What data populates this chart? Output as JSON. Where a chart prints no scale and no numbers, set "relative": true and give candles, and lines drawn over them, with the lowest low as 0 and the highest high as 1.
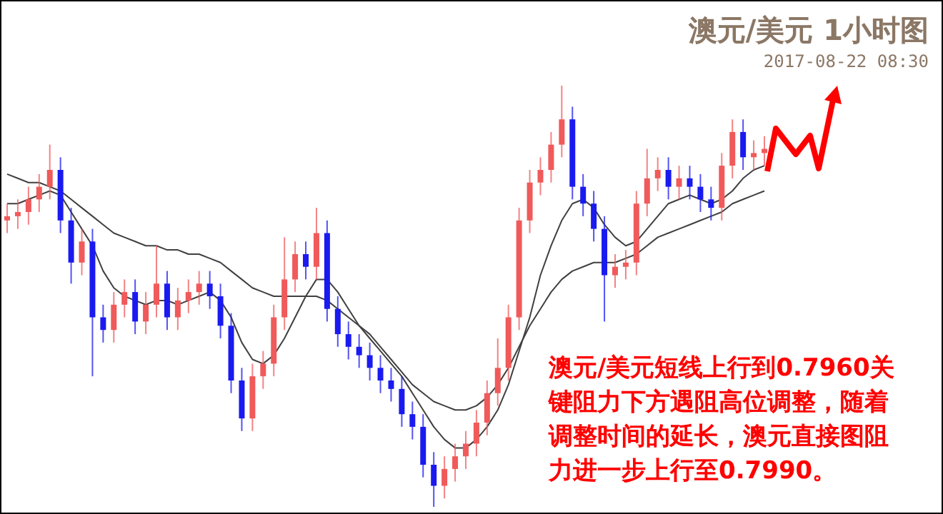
{
  "chart_data": {
    "type": "candlestick",
    "relative": true,
    "title": "澳元/美元 1小时图",
    "subtitle": "2017-08-22 08:30",
    "annotations": [
      "澳元/美元短线上行到0.7960关键阻力下方遇阻高位调整，随着调整时间的延长，澳元直接图阻力进一步上行至0.7990。"
    ],
    "categories": [
      null,
      null,
      null,
      null,
      null,
      null,
      null,
      null,
      null,
      null,
      null,
      null,
      null,
      null,
      null,
      null,
      null,
      null,
      null,
      null,
      null,
      null,
      null,
      null,
      null,
      null,
      null,
      null,
      null,
      null,
      null,
      null,
      null,
      null,
      null,
      null,
      null,
      null,
      null,
      null,
      null,
      null,
      null,
      null,
      null,
      null,
      null,
      null,
      null,
      null,
      null,
      null,
      null,
      null,
      null,
      null,
      null,
      null,
      null,
      null,
      null,
      null,
      null,
      null,
      null,
      null,
      null,
      null,
      null,
      null,
      null,
      null
    ],
    "ohlc": [
      [
        0.68,
        0.72,
        0.65,
        0.69
      ],
      [
        0.69,
        0.73,
        0.66,
        0.7
      ],
      [
        0.7,
        0.76,
        0.67,
        0.73
      ],
      [
        0.73,
        0.79,
        0.7,
        0.76
      ],
      [
        0.76,
        0.86,
        0.73,
        0.8
      ],
      [
        0.8,
        0.83,
        0.65,
        0.68
      ],
      [
        0.68,
        0.71,
        0.53,
        0.58
      ],
      [
        0.58,
        0.66,
        0.55,
        0.63
      ],
      [
        0.63,
        0.66,
        0.31,
        0.45
      ],
      [
        0.45,
        0.48,
        0.39,
        0.42
      ],
      [
        0.42,
        0.51,
        0.39,
        0.48
      ],
      [
        0.48,
        0.54,
        0.45,
        0.51
      ],
      [
        0.51,
        0.54,
        0.41,
        0.44
      ],
      [
        0.44,
        0.51,
        0.41,
        0.48
      ],
      [
        0.48,
        0.62,
        0.45,
        0.53
      ],
      [
        0.53,
        0.56,
        0.42,
        0.45
      ],
      [
        0.45,
        0.52,
        0.42,
        0.49
      ],
      [
        0.49,
        0.54,
        0.46,
        0.51
      ],
      [
        0.51,
        0.56,
        0.48,
        0.53
      ],
      [
        0.53,
        0.56,
        0.47,
        0.5
      ],
      [
        0.5,
        0.53,
        0.4,
        0.43
      ],
      [
        0.43,
        0.46,
        0.27,
        0.3
      ],
      [
        0.3,
        0.33,
        0.18,
        0.21
      ],
      [
        0.21,
        0.34,
        0.18,
        0.31
      ],
      [
        0.31,
        0.37,
        0.28,
        0.34
      ],
      [
        0.34,
        0.48,
        0.31,
        0.45
      ],
      [
        0.45,
        0.64,
        0.42,
        0.54
      ],
      [
        0.54,
        0.63,
        0.51,
        0.6
      ],
      [
        0.6,
        0.63,
        0.54,
        0.57
      ],
      [
        0.57,
        0.71,
        0.54,
        0.65
      ],
      [
        0.65,
        0.68,
        0.44,
        0.47
      ],
      [
        0.47,
        0.5,
        0.38,
        0.41
      ],
      [
        0.41,
        0.44,
        0.35,
        0.38
      ],
      [
        0.38,
        0.41,
        0.33,
        0.36
      ],
      [
        0.36,
        0.39,
        0.3,
        0.33
      ],
      [
        0.33,
        0.36,
        0.27,
        0.3
      ],
      [
        0.3,
        0.33,
        0.25,
        0.28
      ],
      [
        0.28,
        0.31,
        0.19,
        0.22
      ],
      [
        0.22,
        0.25,
        0.16,
        0.19
      ],
      [
        0.19,
        0.22,
        0.07,
        0.1
      ],
      [
        0.1,
        0.13,
        0.0,
        0.05
      ],
      [
        0.05,
        0.12,
        0.02,
        0.09
      ],
      [
        0.09,
        0.15,
        0.06,
        0.12
      ],
      [
        0.12,
        0.18,
        0.09,
        0.15
      ],
      [
        0.15,
        0.23,
        0.12,
        0.2
      ],
      [
        0.2,
        0.3,
        0.17,
        0.27
      ],
      [
        0.27,
        0.4,
        0.24,
        0.33
      ],
      [
        0.33,
        0.48,
        0.3,
        0.45
      ],
      [
        0.45,
        0.71,
        0.42,
        0.68
      ],
      [
        0.68,
        0.8,
        0.65,
        0.77
      ],
      [
        0.77,
        0.83,
        0.74,
        0.8
      ],
      [
        0.8,
        0.89,
        0.77,
        0.86
      ],
      [
        0.86,
        1.0,
        0.83,
        0.92
      ],
      [
        0.92,
        0.95,
        0.73,
        0.76
      ],
      [
        0.76,
        0.79,
        0.69,
        0.72
      ],
      [
        0.72,
        0.75,
        0.63,
        0.66
      ],
      [
        0.66,
        0.69,
        0.44,
        0.55
      ],
      [
        0.55,
        0.6,
        0.52,
        0.57
      ],
      [
        0.57,
        0.61,
        0.54,
        0.58
      ],
      [
        0.58,
        0.75,
        0.55,
        0.72
      ],
      [
        0.72,
        0.85,
        0.69,
        0.78
      ],
      [
        0.78,
        0.83,
        0.75,
        0.8
      ],
      [
        0.8,
        0.83,
        0.73,
        0.76
      ],
      [
        0.76,
        0.81,
        0.73,
        0.78
      ],
      [
        0.78,
        0.81,
        0.73,
        0.76
      ],
      [
        0.76,
        0.79,
        0.7,
        0.73
      ],
      [
        0.73,
        0.76,
        0.68,
        0.71
      ],
      [
        0.71,
        0.84,
        0.68,
        0.81
      ],
      [
        0.81,
        0.92,
        0.78,
        0.89
      ],
      [
        0.89,
        0.92,
        0.8,
        0.83
      ],
      [
        0.83,
        0.87,
        0.8,
        0.84
      ],
      [
        0.84,
        0.88,
        0.81,
        0.85
      ]
    ],
    "colors": [
      "#f05a5a",
      "#f05a5a",
      "#f05a5a",
      "#f05a5a",
      "#f05a5a",
      "#1a1af0",
      "#1a1af0",
      "#f05a5a",
      "#1a1af0",
      "#1a1af0",
      "#f05a5a",
      "#f05a5a",
      "#1a1af0",
      "#f05a5a",
      "#f05a5a",
      "#1a1af0",
      "#f05a5a",
      "#f05a5a",
      "#f05a5a",
      "#1a1af0",
      "#1a1af0",
      "#1a1af0",
      "#1a1af0",
      "#f05a5a",
      "#f05a5a",
      "#f05a5a",
      "#f05a5a",
      "#f05a5a",
      "#1a1af0",
      "#f05a5a",
      "#1a1af0",
      "#1a1af0",
      "#1a1af0",
      "#1a1af0",
      "#1a1af0",
      "#1a1af0",
      "#1a1af0",
      "#1a1af0",
      "#1a1af0",
      "#1a1af0",
      "#1a1af0",
      "#f05a5a",
      "#f05a5a",
      "#f05a5a",
      "#f05a5a",
      "#f05a5a",
      "#f05a5a",
      "#f05a5a",
      "#f05a5a",
      "#f05a5a",
      "#f05a5a",
      "#f05a5a",
      "#f05a5a",
      "#1a1af0",
      "#1a1af0",
      "#1a1af0",
      "#1a1af0",
      "#f05a5a",
      "#f05a5a",
      "#f05a5a",
      "#f05a5a",
      "#f05a5a",
      "#1a1af0",
      "#f05a5a",
      "#1a1af0",
      "#1a1af0",
      "#1a1af0",
      "#f05a5a",
      "#f05a5a",
      "#1a1af0",
      "#f05a5a",
      "#f05a5a"
    ],
    "series": [
      {
        "type": "line",
        "color": "#404040",
        "values": [
          0.72,
          0.72,
          0.73,
          0.74,
          0.75,
          0.74,
          0.7,
          0.66,
          0.62,
          0.56,
          0.52,
          0.5,
          0.49,
          0.48,
          0.49,
          0.49,
          0.48,
          0.49,
          0.5,
          0.51,
          0.49,
          0.45,
          0.39,
          0.35,
          0.34,
          0.36,
          0.4,
          0.45,
          0.5,
          0.54,
          0.54,
          0.51,
          0.47,
          0.43,
          0.4,
          0.37,
          0.34,
          0.31,
          0.27,
          0.23,
          0.19,
          0.16,
          0.14,
          0.14,
          0.16,
          0.19,
          0.23,
          0.29,
          0.37,
          0.45,
          0.55,
          0.62,
          0.68,
          0.72,
          0.73,
          0.71,
          0.67,
          0.64,
          0.62,
          0.63,
          0.66,
          0.69,
          0.72,
          0.73,
          0.74,
          0.73,
          0.72,
          0.73,
          0.75,
          0.78,
          0.8,
          0.81
        ]
      },
      {
        "type": "line",
        "color": "#404040",
        "values": [
          0.79,
          0.78,
          0.77,
          0.77,
          0.76,
          0.75,
          0.73,
          0.71,
          0.69,
          0.67,
          0.65,
          0.64,
          0.63,
          0.62,
          0.62,
          0.61,
          0.61,
          0.6,
          0.6,
          0.59,
          0.58,
          0.56,
          0.54,
          0.52,
          0.51,
          0.5,
          0.5,
          0.5,
          0.5,
          0.5,
          0.49,
          0.47,
          0.45,
          0.43,
          0.41,
          0.38,
          0.35,
          0.32,
          0.29,
          0.27,
          0.25,
          0.24,
          0.23,
          0.23,
          0.24,
          0.26,
          0.29,
          0.33,
          0.38,
          0.43,
          0.47,
          0.51,
          0.54,
          0.56,
          0.57,
          0.58,
          0.58,
          0.58,
          0.59,
          0.6,
          0.62,
          0.64,
          0.65,
          0.66,
          0.67,
          0.68,
          0.69,
          0.7,
          0.72,
          0.73,
          0.74,
          0.75
        ]
      }
    ]
  }
}
